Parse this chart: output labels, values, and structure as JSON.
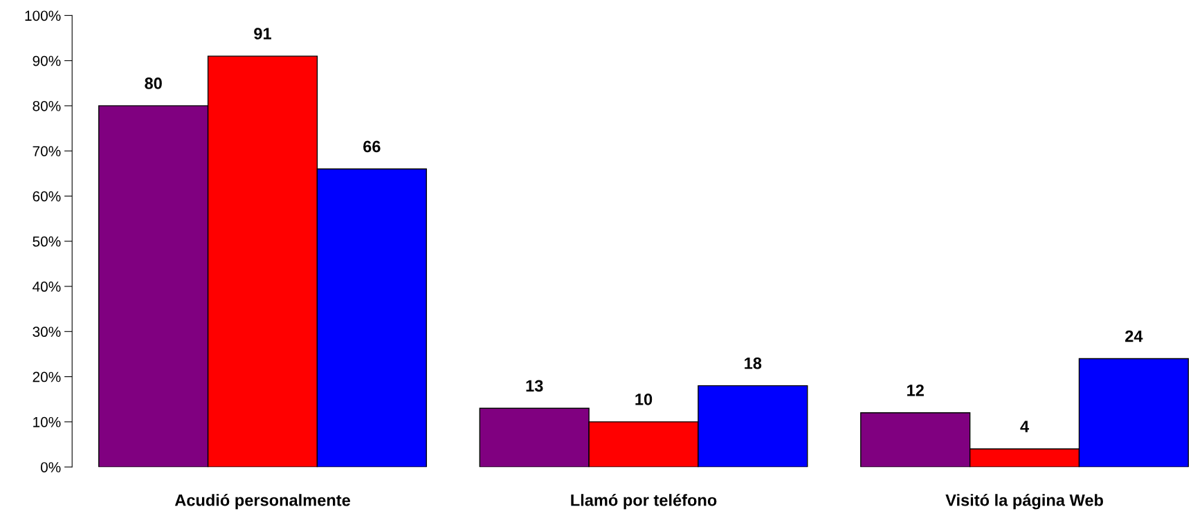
{
  "chart_data": {
    "type": "bar",
    "categories": [
      "Acudió personalmente",
      "Llamó por teléfono",
      "Visitó la página Web"
    ],
    "series": [
      {
        "color": "#800080",
        "values": [
          80,
          13,
          12
        ]
      },
      {
        "color": "#ff0000",
        "values": [
          91,
          10,
          4
        ]
      },
      {
        "color": "#0000ff",
        "values": [
          66,
          18,
          24
        ]
      }
    ],
    "ylim": [
      0,
      100
    ],
    "yticks": [
      {
        "value": 0,
        "label": "0%"
      },
      {
        "value": 10,
        "label": "10%"
      },
      {
        "value": 20,
        "label": "20%"
      },
      {
        "value": 30,
        "label": "30%"
      },
      {
        "value": 40,
        "label": "40%"
      },
      {
        "value": 50,
        "label": "50%"
      },
      {
        "value": 60,
        "label": "60%"
      },
      {
        "value": 70,
        "label": "70%"
      },
      {
        "value": 80,
        "label": "80%"
      },
      {
        "value": 90,
        "label": "90%"
      },
      {
        "value": 100,
        "label": "100%"
      }
    ],
    "data_labels": true,
    "grid": false,
    "legend": false
  }
}
